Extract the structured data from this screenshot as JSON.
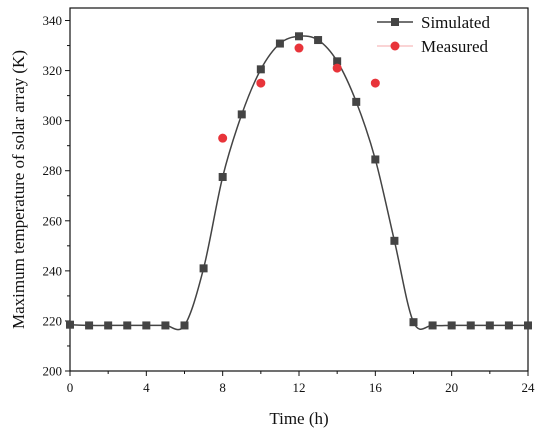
{
  "chart_data": {
    "type": "scatter",
    "title": "",
    "xlabel": "Time (h)",
    "ylabel": "Maximum temperature of solar array (K)",
    "xlim": [
      0,
      24
    ],
    "ylim": [
      200,
      345
    ],
    "xticks": [
      0,
      4,
      8,
      12,
      16,
      20,
      24
    ],
    "yticks": [
      200,
      220,
      240,
      260,
      280,
      300,
      320,
      340
    ],
    "grid": false,
    "legend_position": "top-right",
    "series": [
      {
        "name": "Simulated",
        "color": "#444444",
        "marker": "square",
        "x": [
          0,
          1,
          2,
          3,
          4,
          5,
          6,
          7,
          8,
          9,
          10,
          11,
          12,
          13,
          14,
          15,
          16,
          17,
          18,
          19,
          20,
          21,
          22,
          23,
          24
        ],
        "y": [
          218.5,
          218.2,
          218.2,
          218.2,
          218.2,
          218.2,
          218.2,
          241,
          277.5,
          302.5,
          320.5,
          330.8,
          333.7,
          332.2,
          323.7,
          307.5,
          284.5,
          252,
          219.5,
          218.2,
          218.2,
          218.2,
          218.2,
          218.2,
          218.2
        ]
      },
      {
        "name": "Measured",
        "color": "#e8343a",
        "marker": "circle",
        "x": [
          8,
          10,
          12,
          14,
          16
        ],
        "y": [
          293,
          315,
          329,
          321,
          315
        ]
      }
    ]
  }
}
